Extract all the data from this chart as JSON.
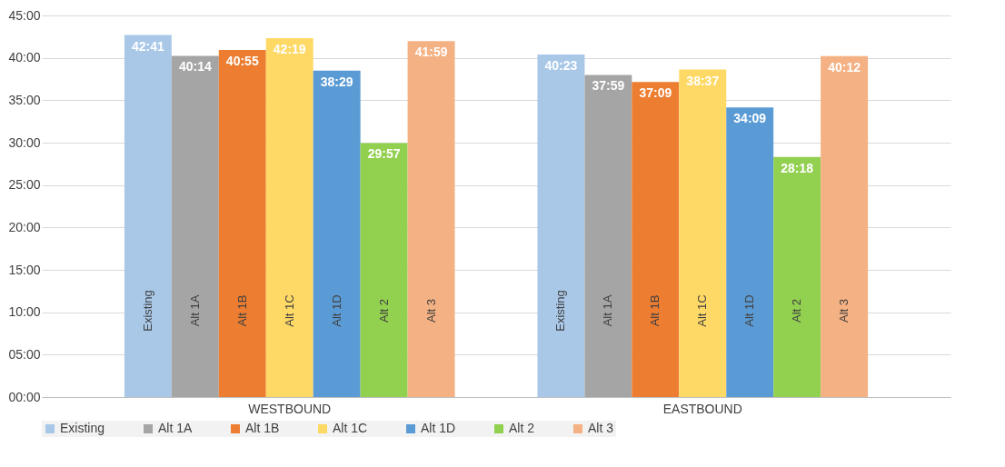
{
  "chart_data": {
    "type": "bar",
    "categories": [
      "WESTBOUND",
      "EASTBOUND"
    ],
    "series": [
      {
        "name": "Existing",
        "color": "#a9c8e8",
        "values": [
          42.6833,
          40.3833
        ],
        "value_labels": [
          "42:41",
          "40:23"
        ]
      },
      {
        "name": "Alt 1A",
        "color": "#a5a5a5",
        "values": [
          40.2333,
          37.9833
        ],
        "value_labels": [
          "40:14",
          "37:59"
        ]
      },
      {
        "name": "Alt 1B",
        "color": "#ed7d31",
        "values": [
          40.9167,
          37.15
        ],
        "value_labels": [
          "40:55",
          "37:09"
        ]
      },
      {
        "name": "Alt 1C",
        "color": "#ffd966",
        "values": [
          42.3167,
          38.6167
        ],
        "value_labels": [
          "42:19",
          "38:37"
        ]
      },
      {
        "name": "Alt 1D",
        "color": "#5b9bd5",
        "values": [
          38.4833,
          34.15
        ],
        "value_labels": [
          "38:29",
          "34:09"
        ]
      },
      {
        "name": "Alt 2",
        "color": "#92d050",
        "values": [
          29.95,
          28.3
        ],
        "value_labels": [
          "29:57",
          "28:18"
        ]
      },
      {
        "name": "Alt 3",
        "color": "#f4b183",
        "values": [
          41.9833,
          40.2
        ],
        "value_labels": [
          "41:59",
          "40:12"
        ]
      }
    ],
    "ylim": [
      0,
      45
    ],
    "yticks": [
      {
        "value": 0,
        "label": "00:00"
      },
      {
        "value": 5,
        "label": "05:00"
      },
      {
        "value": 10,
        "label": "10:00"
      },
      {
        "value": 15,
        "label": "15:00"
      },
      {
        "value": 20,
        "label": "20:00"
      },
      {
        "value": 25,
        "label": "25:00"
      },
      {
        "value": 30,
        "label": "30:00"
      },
      {
        "value": 35,
        "label": "35:00"
      },
      {
        "value": 40,
        "label": "40:00"
      },
      {
        "value": 45,
        "label": "45:00"
      }
    ],
    "grid": "y",
    "legend": "bottom"
  }
}
